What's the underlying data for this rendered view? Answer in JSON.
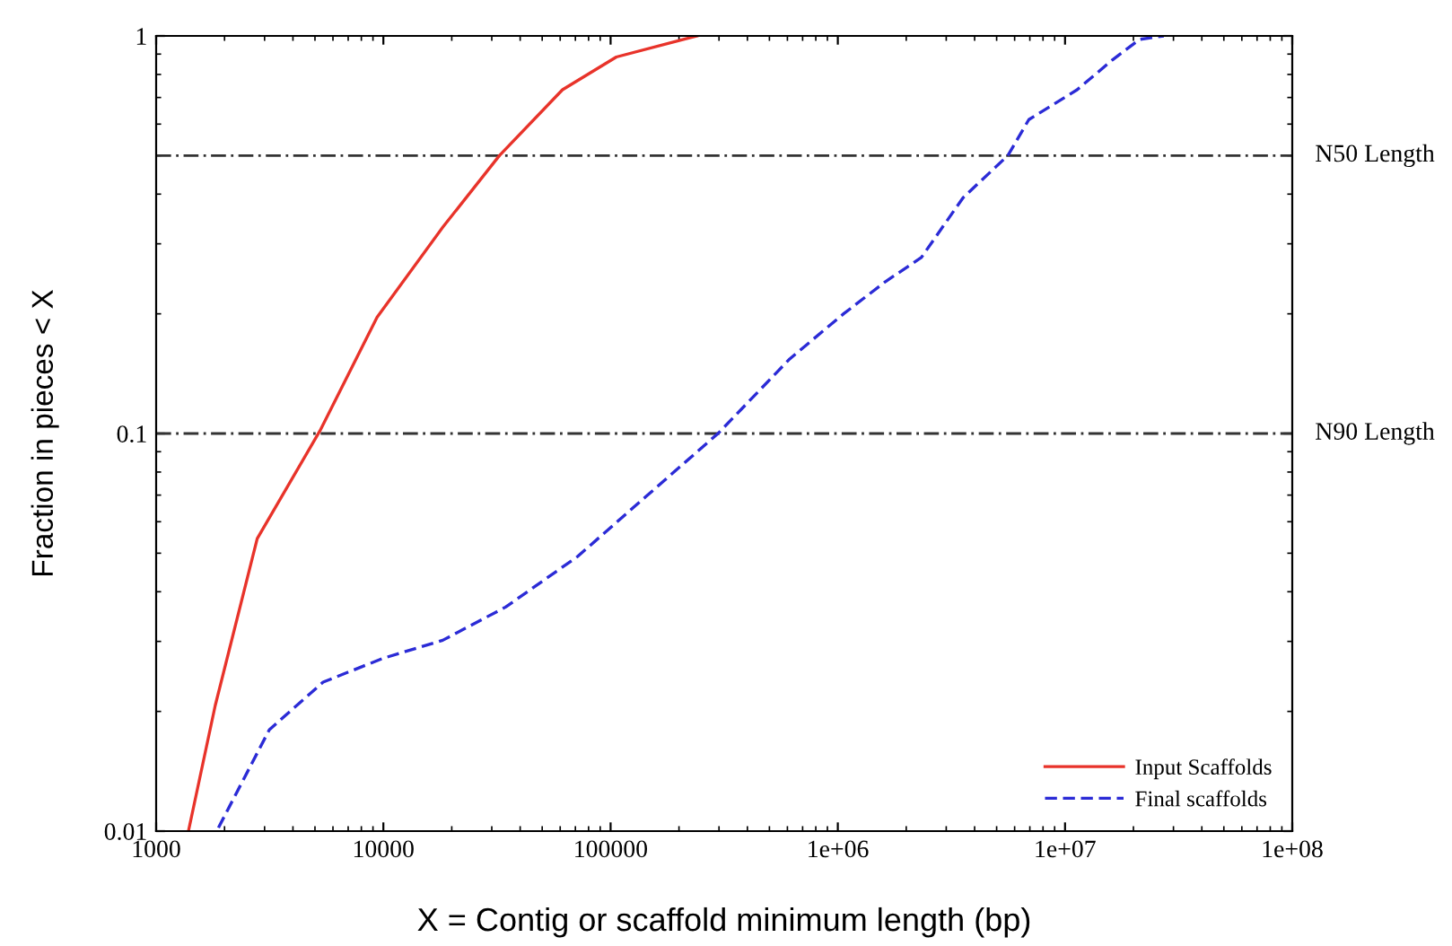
{
  "chart_data": {
    "type": "line",
    "xlabel": "X = Contig or scaffold minimum length (bp)",
    "ylabel": "Fraction in pieces < X",
    "log": "xy",
    "xlim": [
      1000,
      100000000
    ],
    "xticks": [
      1000,
      10000,
      100000,
      {
        "value": 1000000,
        "label": "1e+06"
      },
      {
        "value": 10000000,
        "label": "1e+07"
      },
      {
        "value": 100000000,
        "label": "1e+08"
      }
    ],
    "ylim": [
      0.01,
      1
    ],
    "yticks": [
      0.01,
      0.1,
      1
    ],
    "legend": "bottom right",
    "grid": false,
    "ref_lines": [
      {
        "axis": "y",
        "value": 0.5,
        "label": "N50 Length",
        "color": "#333333",
        "line_style": "dashdot"
      },
      {
        "axis": "y",
        "value": 0.1,
        "label": "N90 Length",
        "color": "#333333",
        "line_style": "dashdot"
      }
    ],
    "series": [
      {
        "name": "Input Scaffolds",
        "color": "#e8332a",
        "line_style": "solid",
        "x": [
          1387,
          1820,
          2785,
          5260,
          9380,
          18240,
          32400,
          61400,
          106000,
          240000
        ],
        "values": [
          0.01,
          0.0207,
          0.0544,
          0.1016,
          0.196,
          0.33,
          0.5,
          0.732,
          0.885,
          1
        ]
      },
      {
        "name": "Final scaffolds",
        "color": "#2b2bd6",
        "line_style": "dashed",
        "x": [
          1880,
          3150,
          5430,
          9960,
          18240,
          34500,
          71400,
          143000,
          297000,
          614000,
          1060000,
          1620000,
          2330000,
          3560000,
          5600000,
          6930000,
          11300000,
          16200000,
          21300000,
          27200000
        ],
        "values": [
          0.0102,
          0.018,
          0.0237,
          0.0272,
          0.0302,
          0.0366,
          0.049,
          0.0694,
          0.1,
          0.154,
          0.2,
          0.241,
          0.277,
          0.392,
          0.5,
          0.616,
          0.732,
          0.871,
          0.98,
          1
        ]
      }
    ]
  }
}
